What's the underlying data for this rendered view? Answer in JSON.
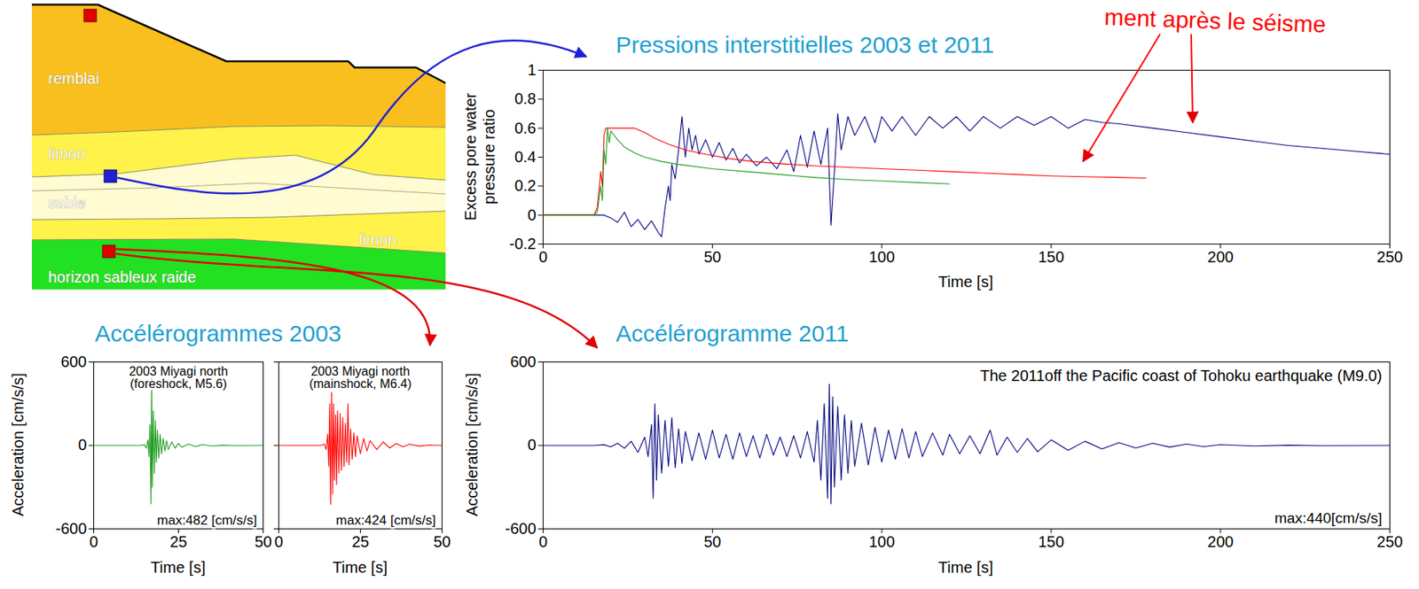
{
  "diagram": {
    "layers": [
      "remblai",
      "limon",
      "sable",
      "limon",
      "horizon sableux raide"
    ],
    "annotation": "ment après le séisme"
  },
  "chart_data": [
    {
      "type": "line",
      "title": "Pressions interstitielles 2003 et 2011",
      "x_label": "Time [s]",
      "y_label": "Excess pore water pressure ratio",
      "xlim": [
        0,
        250
      ],
      "xticks": [
        0,
        50,
        100,
        150,
        200,
        250
      ],
      "ylim": [
        -0.2,
        1
      ],
      "yticks": [
        -0.2,
        0,
        0.2,
        0.4,
        0.6,
        0.8,
        1
      ],
      "series": [
        {
          "color": "#000080",
          "x": [
            0,
            18,
            20,
            22,
            24,
            26,
            28,
            30,
            32,
            34,
            35,
            36,
            37,
            37.5,
            38,
            39,
            40,
            41,
            42,
            43,
            44,
            45,
            46,
            48,
            50,
            52,
            54,
            56,
            58,
            60,
            63,
            66,
            69,
            72,
            74,
            76,
            78,
            80,
            82,
            84,
            85,
            86,
            87,
            88,
            90,
            92,
            95,
            98,
            100,
            103,
            106,
            110,
            114,
            118,
            122,
            126,
            130,
            135,
            140,
            145,
            150,
            155,
            160,
            165,
            170,
            180,
            190,
            200,
            210,
            220,
            230,
            240,
            250
          ],
          "values": [
            0,
            0,
            -0.02,
            -0.05,
            0.02,
            -0.08,
            -0.03,
            -0.1,
            -0.04,
            -0.12,
            -0.15,
            0.05,
            0.2,
            0.1,
            0.35,
            0.25,
            0.45,
            0.68,
            0.4,
            0.6,
            0.45,
            0.55,
            0.42,
            0.52,
            0.4,
            0.5,
            0.38,
            0.46,
            0.36,
            0.42,
            0.34,
            0.4,
            0.32,
            0.45,
            0.3,
            0.55,
            0.33,
            0.58,
            0.35,
            0.6,
            -0.07,
            0.3,
            0.7,
            0.45,
            0.68,
            0.55,
            0.68,
            0.5,
            0.68,
            0.58,
            0.68,
            0.55,
            0.68,
            0.6,
            0.68,
            0.58,
            0.68,
            0.6,
            0.68,
            0.62,
            0.68,
            0.6,
            0.66,
            0.64,
            0.63,
            0.6,
            0.57,
            0.54,
            0.51,
            0.48,
            0.46,
            0.44,
            0.42
          ]
        },
        {
          "color": "#ff0000",
          "x": [
            0,
            15,
            16,
            17,
            17.5,
            18,
            18.5,
            20,
            22,
            24,
            27,
            30,
            33,
            37,
            42,
            48,
            55,
            62,
            70,
            80,
            90,
            100,
            110,
            120,
            130,
            140,
            150,
            160,
            170,
            178
          ],
          "values": [
            0,
            0,
            0.05,
            0.3,
            0.2,
            0.55,
            0.6,
            0.6,
            0.6,
            0.6,
            0.6,
            0.57,
            0.53,
            0.49,
            0.45,
            0.42,
            0.39,
            0.37,
            0.355,
            0.34,
            0.33,
            0.32,
            0.31,
            0.3,
            0.29,
            0.28,
            0.27,
            0.265,
            0.26,
            0.255
          ]
        },
        {
          "color": "#1f9b1f",
          "x": [
            0,
            15,
            16,
            17,
            17.5,
            18,
            18.5,
            19,
            19.5,
            20,
            21,
            22,
            24,
            27,
            30,
            35,
            40,
            50,
            60,
            70,
            80,
            90,
            100,
            110,
            120
          ],
          "values": [
            0,
            0,
            0.02,
            0.2,
            0.1,
            0.45,
            0.35,
            0.6,
            0.5,
            0.58,
            0.55,
            0.52,
            0.47,
            0.43,
            0.4,
            0.37,
            0.35,
            0.32,
            0.3,
            0.28,
            0.26,
            0.245,
            0.235,
            0.225,
            0.215
          ]
        }
      ]
    },
    {
      "type": "line",
      "title": "Accélérogrammes 2003",
      "y_label": "Acceleration [cm/s/s]",
      "panels": [
        {
          "x_label": "Time [s]",
          "annotations": [
            "2003 Miyagi north (foreshock, M5.6)",
            "max:482 [cm/s/s]"
          ],
          "xlim": [
            0,
            50
          ],
          "xticks": [
            0,
            25,
            50
          ],
          "ylim": [
            -600,
            600
          ],
          "yticks": [
            -600,
            0,
            600
          ],
          "series": [
            {
              "color": "#1f9b1f",
              "x": [
                0,
                14,
                15,
                15.5,
                16,
                16.3,
                16.6,
                16.9,
                17.1,
                17.3,
                17.6,
                17.9,
                18.2,
                18.5,
                18.8,
                19.2,
                19.6,
                20,
                20.5,
                21,
                21.5,
                22,
                23,
                24,
                25,
                26,
                28,
                30,
                32,
                35,
                38,
                42,
                50
              ],
              "values": [
                0,
                0,
                5,
                -20,
                40,
                -80,
                150,
                -420,
                482,
                -300,
                250,
                -200,
                180,
                -120,
                110,
                -90,
                80,
                -60,
                50,
                -40,
                35,
                -30,
                25,
                -20,
                15,
                -12,
                10,
                -8,
                6,
                -4,
                2,
                -1,
                0
              ]
            }
          ]
        },
        {
          "x_label": "Time [s]",
          "annotations": [
            "2003 Miyagi north (mainshock, M6.4)",
            "max:424 [cm/s/s]"
          ],
          "xlim": [
            0,
            50
          ],
          "xticks": [
            0,
            25,
            50
          ],
          "ylim": [
            -600,
            600
          ],
          "yticks": [
            -600,
            0,
            600
          ],
          "tick_labels": "x",
          "series": [
            {
              "color": "#ff0000",
              "x": [
                0,
                13,
                14,
                14.5,
                15,
                15.3,
                15.6,
                15.9,
                16.2,
                16.5,
                16.8,
                17.1,
                17.4,
                17.7,
                18,
                18.4,
                18.8,
                19.2,
                19.6,
                20,
                20.4,
                20.8,
                21.2,
                21.5,
                22,
                22.5,
                23,
                23.5,
                24,
                25,
                26,
                27,
                28,
                30,
                32,
                34,
                36,
                38,
                40,
                43,
                46,
                50
              ],
              "values": [
                0,
                0,
                10,
                -30,
                80,
                -150,
                300,
                -424,
                380,
                -350,
                300,
                -250,
                220,
                -280,
                250,
                -200,
                230,
                -180,
                200,
                -150,
                160,
                -120,
                300,
                -140,
                120,
                -100,
                90,
                -80,
                70,
                -60,
                50,
                -40,
                35,
                -30,
                25,
                -18,
                14,
                -10,
                8,
                -5,
                3,
                0
              ]
            }
          ]
        }
      ]
    },
    {
      "type": "line",
      "title": "Accélérogramme 2011",
      "x_label": "Time [s]",
      "y_label": "Acceleration [cm/s/s]",
      "annotations": [
        "The 2011off the Pacific coast of Tohoku earthquake (M9.0)",
        "max:440[cm/s/s]"
      ],
      "xlim": [
        0,
        250
      ],
      "xticks": [
        0,
        50,
        100,
        150,
        200,
        250
      ],
      "ylim": [
        -600,
        600
      ],
      "yticks": [
        -600,
        0,
        600
      ],
      "series": [
        {
          "color": "#000080",
          "x": [
            0,
            15,
            18,
            20,
            22,
            24,
            26,
            28,
            30,
            31,
            32,
            32.5,
            33,
            33.5,
            34,
            35,
            36,
            37,
            38,
            39,
            40,
            41,
            42,
            44,
            46,
            48,
            50,
            52,
            54,
            56,
            58,
            60,
            62,
            64,
            66,
            68,
            70,
            72,
            74,
            76,
            78,
            80,
            81,
            82,
            83,
            84,
            84.5,
            85,
            85.5,
            86,
            87,
            88,
            89,
            90,
            91,
            92,
            94,
            96,
            98,
            100,
            102,
            104,
            106,
            108,
            110,
            112,
            115,
            118,
            120,
            123,
            126,
            129,
            132,
            134,
            137,
            140,
            143,
            146,
            150,
            155,
            160,
            165,
            170,
            175,
            180,
            185,
            190,
            195,
            200,
            210,
            220,
            230,
            250
          ],
          "values": [
            0,
            0,
            5,
            -10,
            15,
            -20,
            30,
            -50,
            60,
            -80,
            150,
            -380,
            300,
            -250,
            220,
            -200,
            180,
            -150,
            200,
            -160,
            120,
            -130,
            100,
            -110,
            90,
            -100,
            110,
            -90,
            80,
            -100,
            90,
            -80,
            70,
            -90,
            80,
            -70,
            60,
            -80,
            70,
            -90,
            100,
            -120,
            180,
            -250,
            300,
            -380,
            440,
            -420,
            350,
            -300,
            280,
            -250,
            220,
            -200,
            180,
            -150,
            160,
            -140,
            130,
            -120,
            110,
            -100,
            120,
            -90,
            100,
            -80,
            90,
            -70,
            80,
            -60,
            70,
            -60,
            110,
            -70,
            60,
            -50,
            50,
            -45,
            40,
            -35,
            30,
            -25,
            20,
            -18,
            15,
            -12,
            10,
            -8,
            6,
            -4,
            2,
            -1,
            0
          ]
        }
      ]
    }
  ]
}
